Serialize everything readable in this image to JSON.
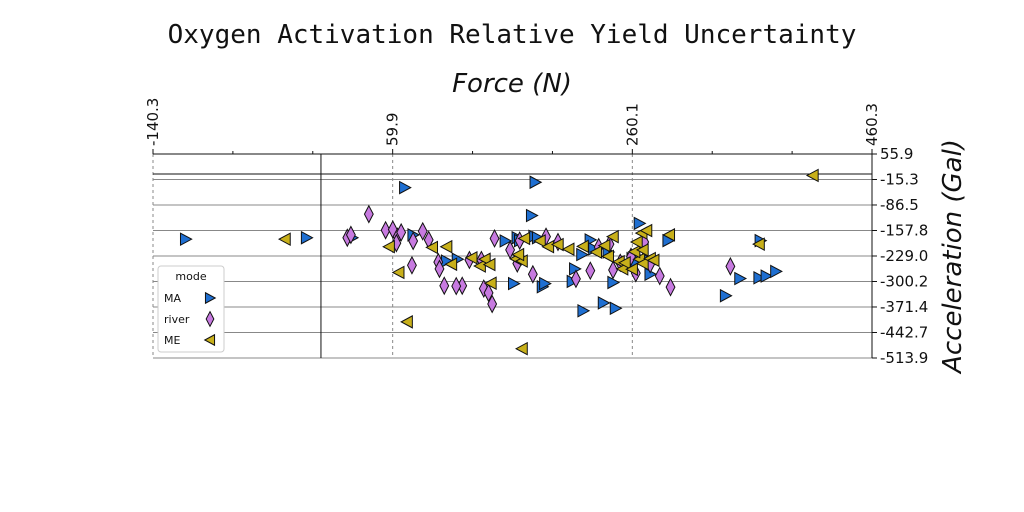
{
  "chart_data": {
    "type": "scatter",
    "title": "Oxygen Activation Relative Yield Uncertainty",
    "xlabel": "Force (N)",
    "ylabel": "Acceleration (Gal)",
    "xlim": [
      -140.3,
      460.3
    ],
    "ylim": [
      -513.9,
      55.9
    ],
    "x_ticks": [
      "-140.3",
      "59.9",
      "260.1",
      "460.3"
    ],
    "y_ticks": [
      "55.9",
      "-15.3",
      "-86.5",
      "-157.8",
      "-229.0",
      "-300.2",
      "-371.4",
      "-442.7",
      "-513.9"
    ],
    "x_axis_position": "top",
    "y_axis_position": "right",
    "zero_lines": true,
    "legend": {
      "title": "mode",
      "placement": "lower-left"
    },
    "series": [
      {
        "name": "MA",
        "marker": "triangle-right",
        "color": "#1f6fd1",
        "points": [
          [
            -113,
            -182
          ],
          [
            26,
            -178
          ],
          [
            -12,
            -178
          ],
          [
            70,
            -38
          ],
          [
            77,
            -170
          ],
          [
            105,
            -243
          ],
          [
            114,
            -238
          ],
          [
            154,
            -187
          ],
          [
            161,
            -306
          ],
          [
            164,
            -178
          ],
          [
            166,
            -186
          ],
          [
            176,
            -116
          ],
          [
            178,
            -174
          ],
          [
            179,
            -23
          ],
          [
            181,
            -178
          ],
          [
            185,
            -315
          ],
          [
            187,
            -306
          ],
          [
            210,
            -300
          ],
          [
            212,
            -265
          ],
          [
            218,
            -225
          ],
          [
            219,
            -382
          ],
          [
            225,
            -184
          ],
          [
            228,
            -209
          ],
          [
            240,
            -218
          ],
          [
            244,
            -303
          ],
          [
            260,
            -236
          ],
          [
            263,
            -228
          ],
          [
            266,
            -138
          ],
          [
            263,
            -245
          ],
          [
            273,
            -240
          ],
          [
            290,
            -186
          ],
          [
            338,
            -340
          ],
          [
            350,
            -292
          ],
          [
            366,
            -290
          ],
          [
            372,
            -285
          ],
          [
            367,
            -186
          ],
          [
            380,
            -272
          ],
          [
            236,
            -360
          ],
          [
            246,
            -375
          ],
          [
            275,
            -280
          ]
        ]
      },
      {
        "name": "river",
        "marker": "diamond",
        "color": "#c77ae0",
        "points": [
          [
            40,
            -112
          ],
          [
            22,
            -178
          ],
          [
            25,
            -170
          ],
          [
            54,
            -157
          ],
          [
            60,
            -155
          ],
          [
            64,
            -175
          ],
          [
            67,
            -163
          ],
          [
            63,
            -193
          ],
          [
            85,
            -160
          ],
          [
            90,
            -184
          ],
          [
            77,
            -187
          ],
          [
            76,
            -255
          ],
          [
            98,
            -246
          ],
          [
            99,
            -265
          ],
          [
            103,
            -312
          ],
          [
            118,
            -312
          ],
          [
            113,
            -313
          ],
          [
            124,
            -240
          ],
          [
            134,
            -240
          ],
          [
            136,
            -320
          ],
          [
            140,
            -332
          ],
          [
            143,
            -363
          ],
          [
            145,
            -180
          ],
          [
            158,
            -212
          ],
          [
            164,
            -250
          ],
          [
            166,
            -186
          ],
          [
            177,
            -280
          ],
          [
            188,
            -175
          ],
          [
            198,
            -190
          ],
          [
            213,
            -293
          ],
          [
            225,
            -270
          ],
          [
            232,
            -204
          ],
          [
            241,
            -196
          ],
          [
            244,
            -268
          ],
          [
            250,
            -248
          ],
          [
            259,
            -231
          ],
          [
            263,
            -277
          ],
          [
            270,
            -190
          ],
          [
            275,
            -252
          ],
          [
            283,
            -285
          ],
          [
            292,
            -316
          ],
          [
            342,
            -258
          ]
        ]
      },
      {
        "name": "ME",
        "marker": "triangle-left",
        "color": "#c8b01a",
        "points": [
          [
            -30,
            -182
          ],
          [
            57,
            -203
          ],
          [
            65,
            -275
          ],
          [
            72,
            -413
          ],
          [
            93,
            -205
          ],
          [
            105,
            -203
          ],
          [
            109,
            -252
          ],
          [
            126,
            -234
          ],
          [
            133,
            -257
          ],
          [
            137,
            -238
          ],
          [
            141,
            -253
          ],
          [
            142,
            -305
          ],
          [
            163,
            -237
          ],
          [
            168,
            -243
          ],
          [
            170,
            -180
          ],
          [
            168,
            -488
          ],
          [
            183,
            -187
          ],
          [
            190,
            -203
          ],
          [
            198,
            -197
          ],
          [
            207,
            -210
          ],
          [
            219,
            -202
          ],
          [
            230,
            -218
          ],
          [
            237,
            -200
          ],
          [
            240,
            -230
          ],
          [
            249,
            -245
          ],
          [
            252,
            -265
          ],
          [
            254,
            -248
          ],
          [
            266,
            -238
          ],
          [
            262,
            -217
          ],
          [
            264,
            -190
          ],
          [
            268,
            -165
          ],
          [
            269,
            -212
          ],
          [
            269,
            -250
          ],
          [
            272,
            -158
          ],
          [
            275,
            -236
          ],
          [
            278,
            -241
          ],
          [
            291,
            -170
          ],
          [
            366,
            -196
          ],
          [
            411,
            -4
          ],
          [
            244,
            -175
          ],
          [
            260,
            -266
          ],
          [
            165,
            -225
          ]
        ]
      }
    ]
  }
}
